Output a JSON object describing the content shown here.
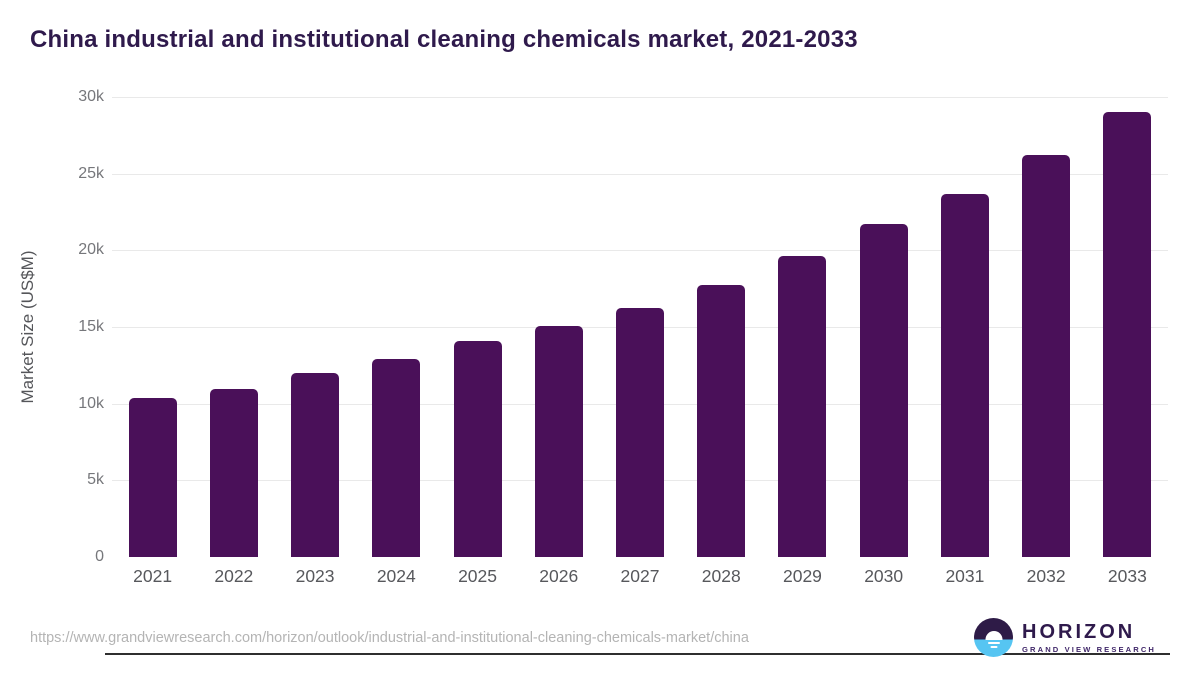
{
  "title": "China industrial and institutional cleaning chemicals market, 2021-2033",
  "chart_data": {
    "type": "bar",
    "title": "China industrial and institutional cleaning chemicals market, 2021-2033",
    "categories": [
      "2021",
      "2022",
      "2023",
      "2024",
      "2025",
      "2026",
      "2027",
      "2028",
      "2029",
      "2030",
      "2031",
      "2032",
      "2033"
    ],
    "values": [
      10350,
      10950,
      12000,
      12900,
      14100,
      15050,
      16250,
      17750,
      19600,
      21700,
      23700,
      26200,
      29000
    ],
    "xlabel": "",
    "ylabel": "Market Size (US$M)",
    "ylim": [
      0,
      30000
    ],
    "yticks": [
      {
        "value": 0,
        "label": "0"
      },
      {
        "value": 5000,
        "label": "5k"
      },
      {
        "value": 10000,
        "label": "10k"
      },
      {
        "value": 15000,
        "label": "15k"
      },
      {
        "value": 20000,
        "label": "20k"
      },
      {
        "value": 25000,
        "label": "25k"
      },
      {
        "value": 30000,
        "label": "30k"
      }
    ],
    "grid": "horizontal-only",
    "legend": "none",
    "bar_color": "#4a1059"
  },
  "footer": {
    "source_url": "https://www.grandviewresearch.com/horizon/outlook/industrial-and-institutional-cleaning-chemicals-market/china",
    "logo": {
      "brand": "HORIZON",
      "sub_brand": "GRAND VIEW RESEARCH",
      "icon": "horizon-sunrise-circle-icon"
    }
  },
  "colors": {
    "bar": "#4a1059",
    "title_text": "#2f1a4c",
    "gridline": "#e9e9e9",
    "axis_line": "#2f2f2f",
    "y_tick_text": "#76777b",
    "x_tick_text": "#57585c",
    "source_text": "#b4b4b4",
    "logo_blue": "#56c5f2",
    "logo_purple": "#2e1b47"
  }
}
